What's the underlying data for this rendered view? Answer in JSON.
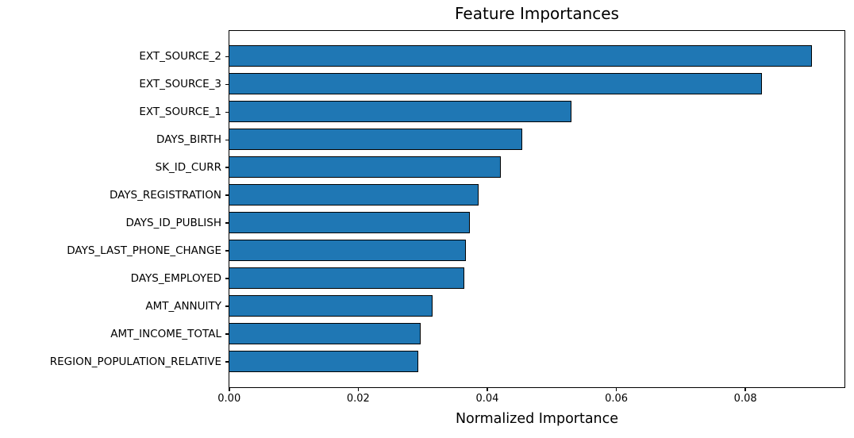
{
  "chart_data": {
    "type": "bar",
    "orientation": "horizontal",
    "title": "Feature Importances",
    "xlabel": "Normalized Importance",
    "ylabel": "",
    "categories": [
      "EXT_SOURCE_2",
      "EXT_SOURCE_3",
      "EXT_SOURCE_1",
      "DAYS_BIRTH",
      "SK_ID_CURR",
      "DAYS_REGISTRATION",
      "DAYS_ID_PUBLISH",
      "DAYS_LAST_PHONE_CHANGE",
      "DAYS_EMPLOYED",
      "AMT_ANNUITY",
      "AMT_INCOME_TOTAL",
      "REGION_POPULATION_RELATIVE"
    ],
    "values": [
      0.0905,
      0.0827,
      0.0532,
      0.0456,
      0.0423,
      0.0388,
      0.0374,
      0.0368,
      0.0366,
      0.0317,
      0.0298,
      0.0294
    ],
    "xlim": [
      0,
      0.0952
    ],
    "xticks": [
      0.0,
      0.02,
      0.04,
      0.06,
      0.08
    ],
    "xtick_labels": [
      "0.00",
      "0.02",
      "0.04",
      "0.06",
      "0.08"
    ],
    "bar_color": "#1f77b4",
    "bar_edge_color": "#000000",
    "background_color": "#ffffff",
    "grid": false,
    "legend": false
  }
}
